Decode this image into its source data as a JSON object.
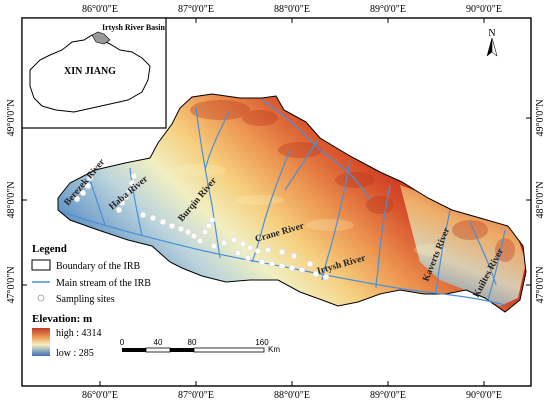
{
  "graticule": {
    "lon_labels": [
      "86°0'0\"E",
      "87°0'0\"E",
      "88°0'0\"E",
      "89°0'0\"E",
      "90°0'0\"E"
    ],
    "lat_labels": [
      "49°0'0\"N",
      "48°0'0\"N",
      "47°0'0\"N"
    ]
  },
  "inset": {
    "title": "Irtysh River Basin",
    "region_label": "XIN JIANG"
  },
  "north_arrow": {
    "label": "N"
  },
  "rivers": {
    "berezek": "Berezek River",
    "haba": "Haba River",
    "burqin": "Burqin River",
    "crane": "Crane River",
    "irtysh": "Irtysh River",
    "kaverts": "Kaverts River",
    "kuiltes": "Kuiltes River"
  },
  "legend": {
    "title": "Legend",
    "boundary": "Boundary of the IRB",
    "stream": "Main stream of the IRB",
    "sites": "Sampling sites"
  },
  "elevation": {
    "title": "Elevation: m",
    "high": "high : 4314",
    "low": "low : 285",
    "high_color": "#c0392b",
    "low_color": "#3c6fb4"
  },
  "scale_bar": {
    "ticks": [
      "0",
      "40",
      "80",
      "160"
    ],
    "unit": "Km"
  },
  "colors": {
    "river": "#4a90d9",
    "boundary": "#000000",
    "inset_basin": "#999999"
  }
}
